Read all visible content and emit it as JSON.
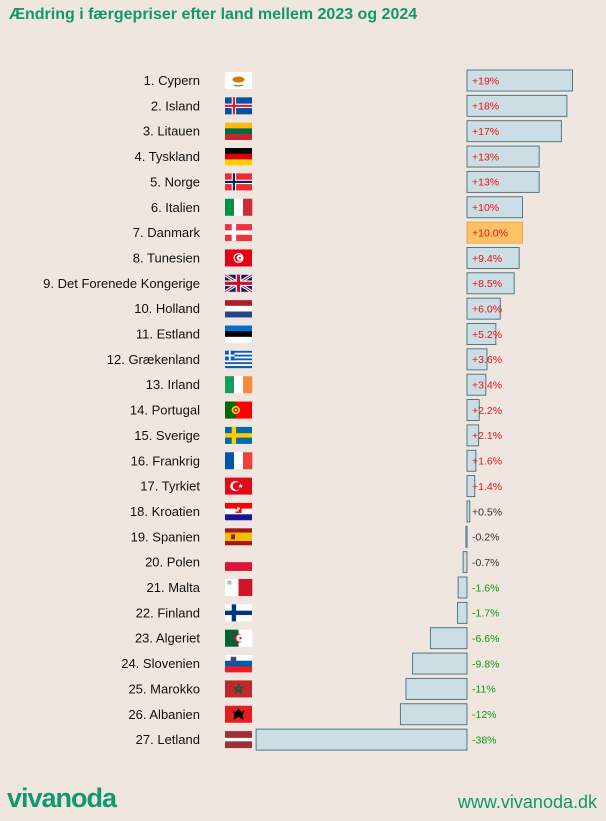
{
  "title": "Ændring i færgepriser efter land mellem 2023 og 2024",
  "footer": {
    "logo": "vivanoda",
    "url": "www.vivanoda.dk"
  },
  "colors": {
    "title": "#11996b",
    "bar_fill": "#ccdde3",
    "bar_stroke": "#3f6f80",
    "highlight_fill": "#ffc166",
    "highlight_stroke": "#e8a23c",
    "positive_text": "#ee1111",
    "neutral_text": "#333333",
    "negative_text": "#119911"
  },
  "chart_data": {
    "type": "bar",
    "orientation": "horizontal",
    "highlight": "7. Danmark",
    "categories": [
      "1. Cypern",
      "2. Island",
      "3. Litauen",
      "4. Tyskland",
      "5. Norge",
      "6. Italien",
      "7. Danmark",
      "8. Tunesien",
      "9. Det Forenede Kongerige",
      "10. Holland",
      "11. Estland",
      "12. Grækenland",
      "13. Irland",
      "14. Portugal",
      "15. Sverige",
      "16. Frankrig",
      "17. Tyrkiet",
      "18. Kroatien",
      "19. Spanien",
      "20. Polen",
      "21. Malta",
      "22. Finland",
      "23. Algeriet",
      "24. Slovenien",
      "25. Marokko",
      "26. Albanien",
      "27. Letland"
    ],
    "values": [
      19,
      18,
      17,
      13,
      13,
      10,
      10.0,
      9.4,
      8.5,
      6.0,
      5.2,
      3.6,
      3.4,
      2.2,
      2.1,
      1.6,
      1.4,
      0.5,
      -0.2,
      -0.7,
      -1.6,
      -1.7,
      -6.6,
      -9.8,
      -11,
      -12,
      -38
    ],
    "value_labels": [
      "+19%",
      "+18%",
      "+17%",
      "+13%",
      "+13%",
      "+10%",
      "+10.0%",
      "+9.4%",
      "+8.5%",
      "+6.0%",
      "+5.2%",
      "+3.6%",
      "+3.4%",
      "+2.2%",
      "+2.1%",
      "+1.6%",
      "+1.4%",
      "+0.5%",
      "-0.2%",
      "-0.7%",
      "-1.6%",
      "-1.7%",
      "-6.6%",
      "-9.8%",
      "-11%",
      "-12%",
      "-38%"
    ],
    "flags": [
      "cyprus-flag",
      "iceland-flag",
      "lithuania-flag",
      "germany-flag",
      "norway-flag",
      "italy-flag",
      "denmark-flag",
      "tunisia-flag",
      "uk-flag",
      "netherlands-flag",
      "estonia-flag",
      "greece-flag",
      "ireland-flag",
      "portugal-flag",
      "sweden-flag",
      "france-flag",
      "turkey-flag",
      "croatia-flag",
      "spain-flag",
      "poland-flag",
      "malta-flag",
      "finland-flag",
      "algeria-flag",
      "slovenia-flag",
      "morocco-flag",
      "albania-flag",
      "latvia-flag"
    ]
  }
}
